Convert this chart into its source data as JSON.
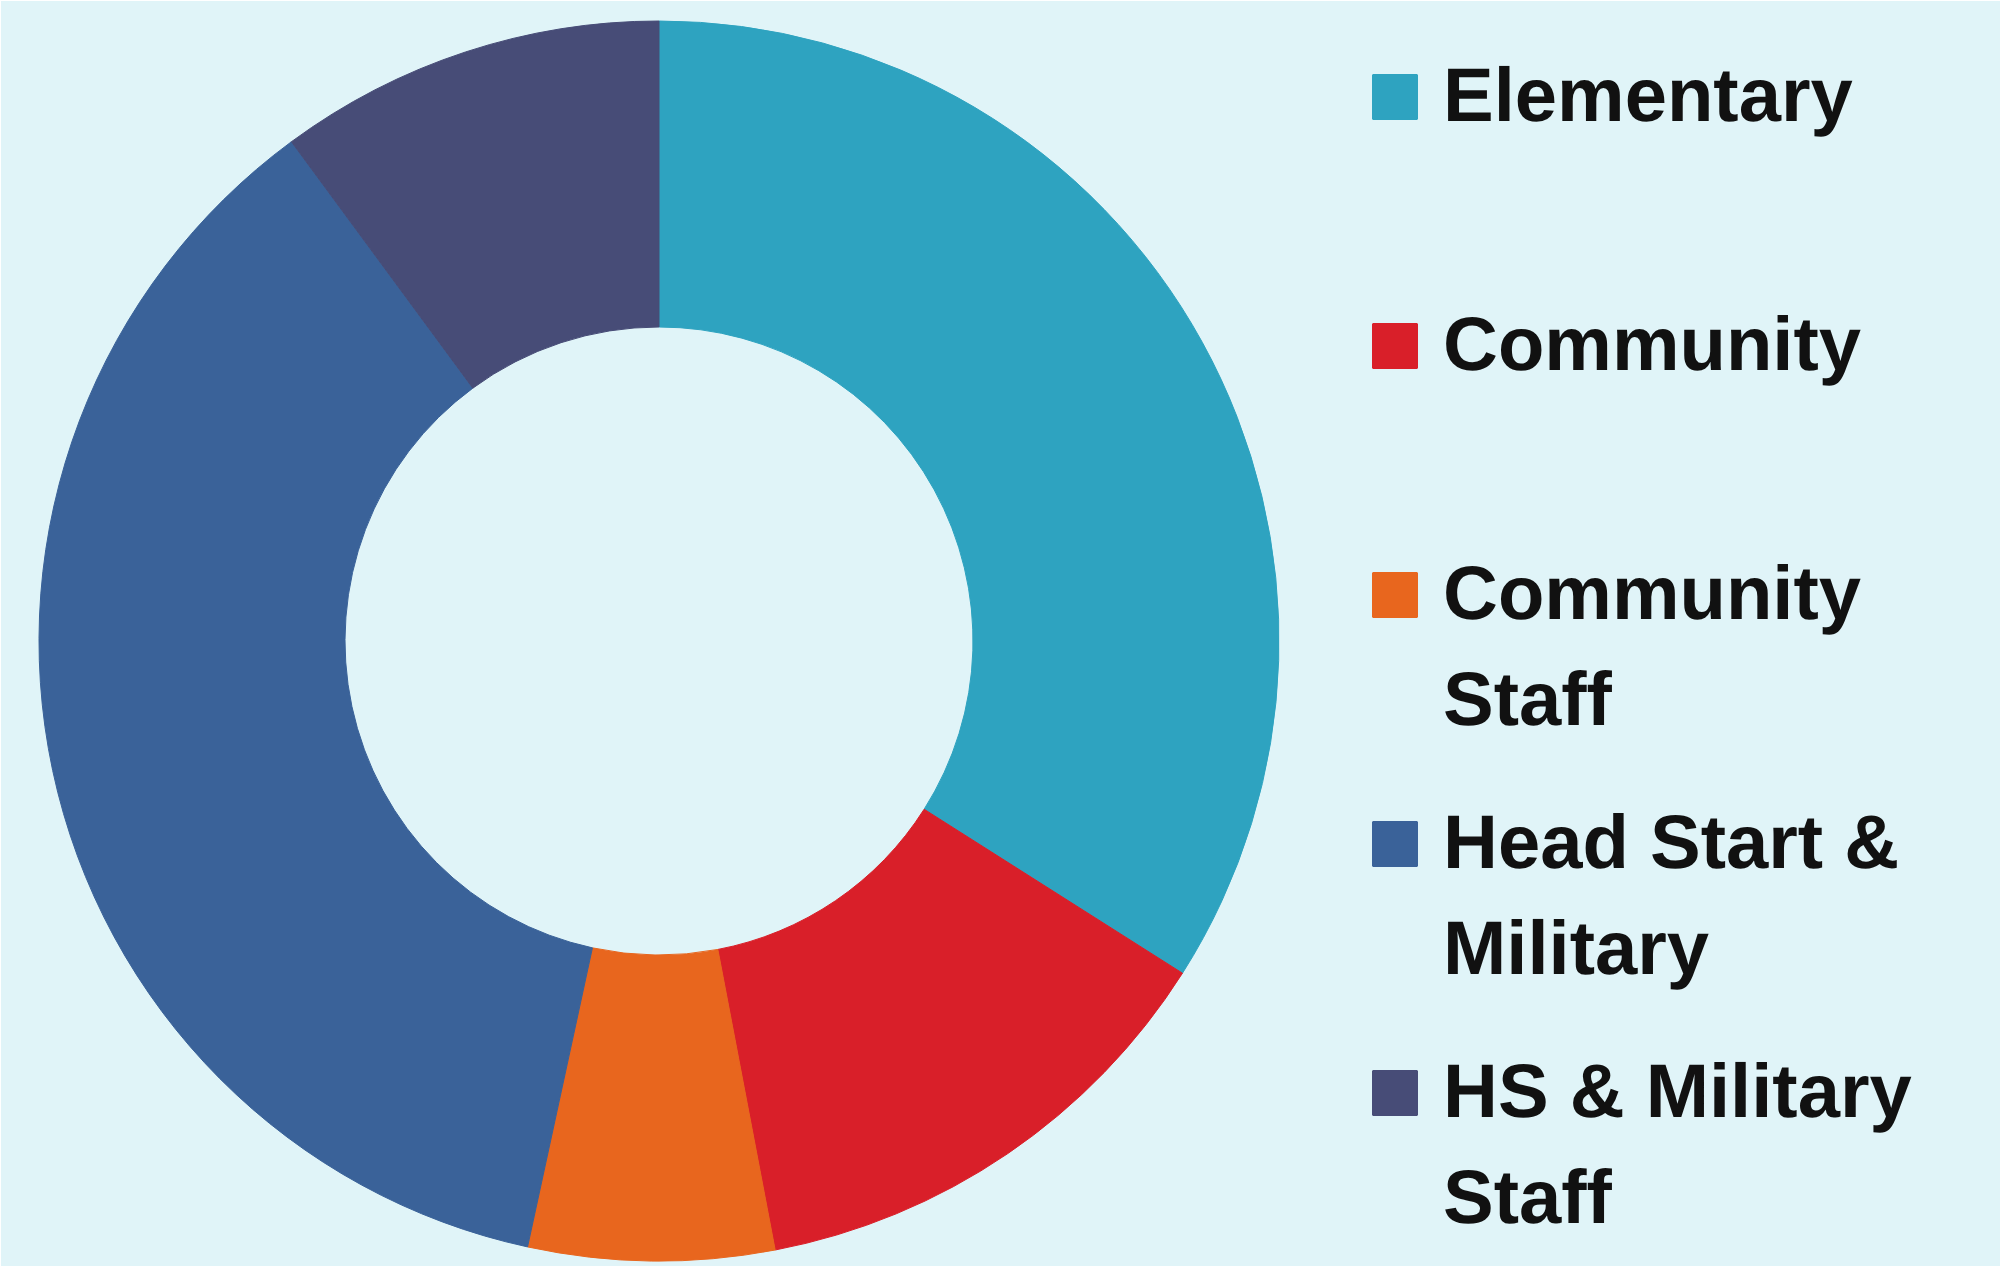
{
  "chart_data": {
    "type": "donut",
    "categories": [
      "Elementary",
      "Community",
      "Community Staff",
      "Head Start & Military",
      "HS & Military Staff"
    ],
    "values": [
      34,
      13,
      6.4,
      36.5,
      10.1
    ],
    "colors": [
      "#2ea3c0",
      "#d91f29",
      "#e8661e",
      "#3a6299",
      "#474c77"
    ],
    "legend": "right"
  }
}
